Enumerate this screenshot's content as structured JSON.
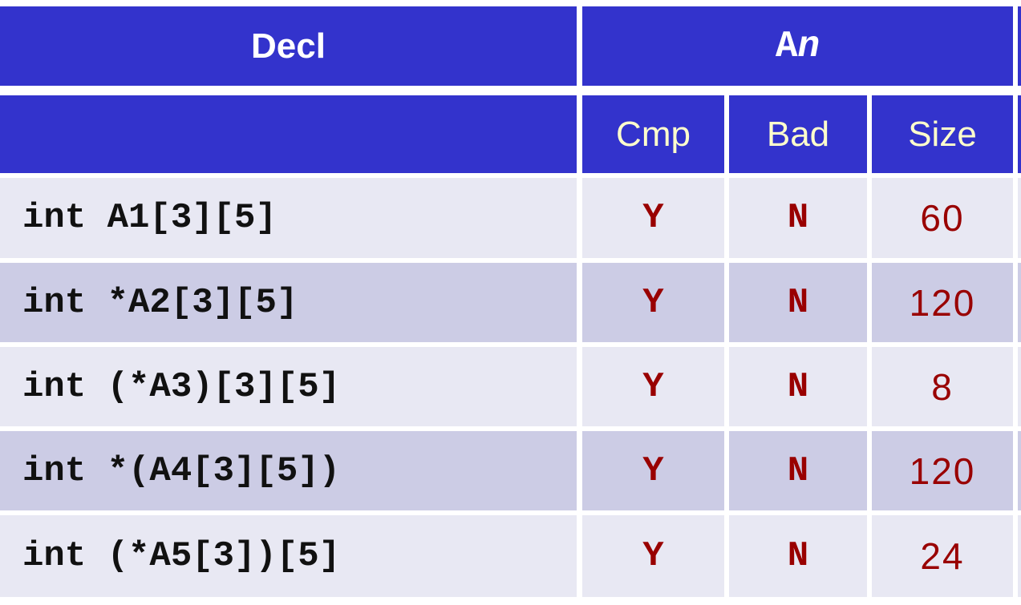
{
  "header": {
    "decl": "Decl",
    "an_prefix": "A",
    "an_suffix": "n"
  },
  "subheader": {
    "cmp": "Cmp",
    "bad": "Bad",
    "size": "Size"
  },
  "rows": [
    {
      "decl": "int A1[3][5]",
      "cmp": "Y",
      "bad": "N",
      "size": "60"
    },
    {
      "decl": "int *A2[3][5]",
      "cmp": "Y",
      "bad": "N",
      "size": "120"
    },
    {
      "decl": "int (*A3)[3][5]",
      "cmp": "Y",
      "bad": "N",
      "size": "8"
    },
    {
      "decl": "int *(A4[3][5])",
      "cmp": "Y",
      "bad": "N",
      "size": "120"
    },
    {
      "decl": "int (*A5[3])[5]",
      "cmp": "Y",
      "bad": "N",
      "size": "24"
    }
  ],
  "colors": {
    "header_bg": "#3333cc",
    "header_text": "#ffffff",
    "subheader_text": "#ffffcc",
    "row_light": "#e8e8f3",
    "row_dark": "#ccccE5",
    "value_text": "#990000"
  }
}
